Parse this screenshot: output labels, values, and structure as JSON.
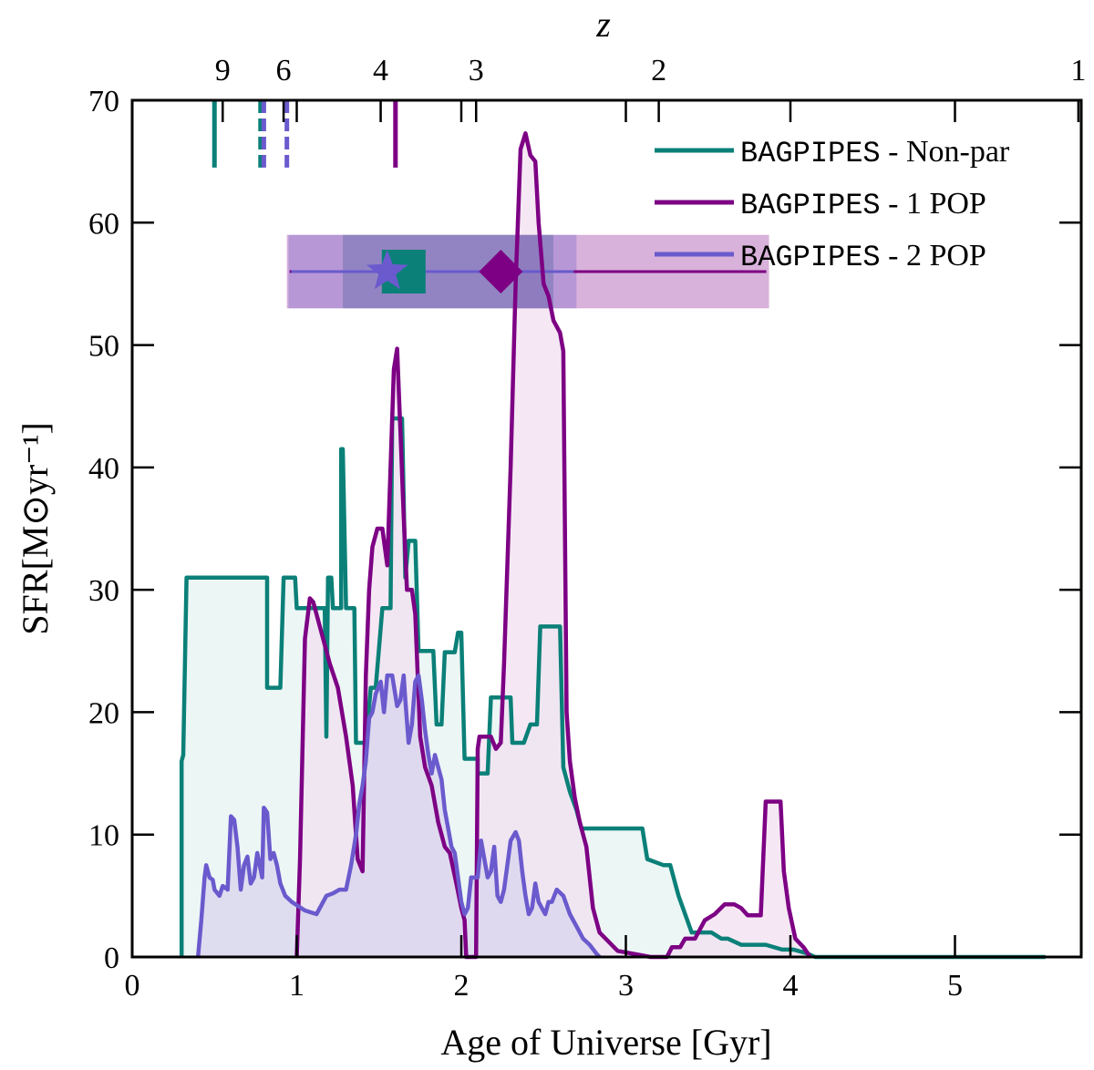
{
  "chart_data": {
    "type": "area",
    "xlabel": "Age of Universe [Gyr]",
    "ylabel": "SFR",
    "ylabel_unit": "[M⊙yr⁻¹]",
    "top_axis_label": "z",
    "xlim": [
      0,
      5.7
    ],
    "ylim": [
      0,
      70
    ],
    "x_ticks": [
      "0",
      "1",
      "2",
      "3",
      "4",
      "5"
    ],
    "y_ticks": [
      "0",
      "10",
      "20",
      "30",
      "40",
      "50",
      "60",
      "70"
    ],
    "top_ticks": [
      {
        "label": "9",
        "age": 0.55
      },
      {
        "label": "6",
        "age": 0.92
      },
      {
        "label": "4",
        "age": 1.51
      },
      {
        "label": "3",
        "age": 2.09
      },
      {
        "label": "2",
        "age": 3.2
      },
      {
        "label": "1",
        "age": 5.75
      }
    ],
    "series": [
      {
        "name": "BAGPIPES - Non-par",
        "legend_mono": "BAGPIPES",
        "legend_rest": " - Non-par",
        "color": "#0b8078",
        "fill": "#e6f3f2",
        "formation_marker": {
          "age": 1.65,
          "xerr": [
            1.28,
            2.56
          ],
          "y": 56,
          "shape": "square"
        },
        "formation_lines": [
          0.5,
          0.78
        ],
        "points": [
          [
            0.3,
            0
          ],
          [
            0.3,
            16
          ],
          [
            0.31,
            16.5
          ],
          [
            0.33,
            31
          ],
          [
            0.82,
            31
          ],
          [
            0.82,
            22
          ],
          [
            0.9,
            22
          ],
          [
            0.92,
            31
          ],
          [
            0.99,
            31
          ],
          [
            1,
            28.5
          ],
          [
            1.17,
            28.5
          ],
          [
            1.18,
            18
          ],
          [
            1.19,
            31
          ],
          [
            1.21,
            31
          ],
          [
            1.22,
            28.5
          ],
          [
            1.27,
            28.5
          ],
          [
            1.27,
            41.5
          ],
          [
            1.28,
            41.5
          ],
          [
            1.3,
            28.5
          ],
          [
            1.35,
            28.5
          ],
          [
            1.36,
            17.5
          ],
          [
            1.42,
            17.5
          ],
          [
            1.45,
            22
          ],
          [
            1.48,
            22
          ],
          [
            1.52,
            28.5
          ],
          [
            1.57,
            28.5
          ],
          [
            1.58,
            44
          ],
          [
            1.64,
            44
          ],
          [
            1.66,
            31
          ],
          [
            1.68,
            34
          ],
          [
            1.72,
            34
          ],
          [
            1.74,
            25
          ],
          [
            1.83,
            25
          ],
          [
            1.85,
            19
          ],
          [
            1.88,
            19
          ],
          [
            1.9,
            24.9
          ],
          [
            1.96,
            24.9
          ],
          [
            1.98,
            26.5
          ],
          [
            2,
            26.5
          ],
          [
            2.02,
            16.2
          ],
          [
            2.1,
            16.2
          ],
          [
            2.1,
            15
          ],
          [
            2.16,
            15
          ],
          [
            2.18,
            21.2
          ],
          [
            2.3,
            21.2
          ],
          [
            2.31,
            17.5
          ],
          [
            2.38,
            17.5
          ],
          [
            2.42,
            19
          ],
          [
            2.46,
            19
          ],
          [
            2.48,
            27
          ],
          [
            2.6,
            27
          ],
          [
            2.62,
            15.5
          ],
          [
            2.66,
            13.5
          ],
          [
            2.7,
            12
          ],
          [
            2.73,
            10.5
          ],
          [
            3.1,
            10.5
          ],
          [
            3.13,
            8
          ],
          [
            3.23,
            7.5
          ],
          [
            3.27,
            7.5
          ],
          [
            3.32,
            5
          ],
          [
            3.4,
            2
          ],
          [
            3.52,
            2
          ],
          [
            3.58,
            1.5
          ],
          [
            3.62,
            1.5
          ],
          [
            3.7,
            1
          ],
          [
            3.85,
            1
          ],
          [
            3.95,
            0.6
          ],
          [
            4.02,
            0.6
          ],
          [
            4.1,
            0.3
          ],
          [
            4.15,
            0
          ],
          [
            5.55,
            0
          ]
        ]
      },
      {
        "name": "BAGPIPES - 1 POP",
        "legend_mono": "BAGPIPES",
        "legend_rest": " - 1 POP",
        "color": "#7d0084",
        "fill": "#f2e0f0",
        "formation_marker": {
          "age": 2.24,
          "xerr": [
            0.94,
            3.87
          ],
          "y": 56,
          "shape": "diamond"
        },
        "formation_lines": [
          1.6
        ],
        "points": [
          [
            1,
            0
          ],
          [
            1.02,
            8
          ],
          [
            1.05,
            26
          ],
          [
            1.08,
            29.3
          ],
          [
            1.1,
            29
          ],
          [
            1.15,
            26.5
          ],
          [
            1.2,
            24
          ],
          [
            1.25,
            22
          ],
          [
            1.3,
            18
          ],
          [
            1.34,
            14
          ],
          [
            1.37,
            8
          ],
          [
            1.4,
            7
          ],
          [
            1.42,
            23
          ],
          [
            1.44,
            30
          ],
          [
            1.46,
            33.5
          ],
          [
            1.49,
            35
          ],
          [
            1.52,
            35
          ],
          [
            1.55,
            32
          ],
          [
            1.57,
            40
          ],
          [
            1.59,
            48
          ],
          [
            1.61,
            49.7
          ],
          [
            1.63,
            43
          ],
          [
            1.65,
            36
          ],
          [
            1.67,
            30
          ],
          [
            1.7,
            30
          ],
          [
            1.72,
            28
          ],
          [
            1.75,
            18
          ],
          [
            1.78,
            15.5
          ],
          [
            1.82,
            14
          ],
          [
            1.86,
            11
          ],
          [
            1.9,
            9
          ],
          [
            1.93,
            8.5
          ],
          [
            1.97,
            6
          ],
          [
            2,
            4
          ],
          [
            2.02,
            3
          ],
          [
            2.03,
            0
          ],
          [
            2.09,
            0
          ],
          [
            2.1,
            17
          ],
          [
            2.11,
            18
          ],
          [
            2.18,
            18
          ],
          [
            2.21,
            17
          ],
          [
            2.24,
            17.5
          ],
          [
            2.26,
            24
          ],
          [
            2.3,
            40
          ],
          [
            2.33,
            55
          ],
          [
            2.36,
            66
          ],
          [
            2.39,
            67.3
          ],
          [
            2.42,
            65.5
          ],
          [
            2.45,
            65
          ],
          [
            2.47,
            60
          ],
          [
            2.5,
            55
          ],
          [
            2.53,
            54
          ],
          [
            2.56,
            52
          ],
          [
            2.6,
            51
          ],
          [
            2.62,
            49.5
          ],
          [
            2.64,
            20
          ],
          [
            2.66,
            16
          ],
          [
            2.69,
            13
          ],
          [
            2.72,
            11
          ],
          [
            2.76,
            9
          ],
          [
            2.8,
            4
          ],
          [
            2.84,
            2
          ],
          [
            2.95,
            0.5
          ],
          [
            3.15,
            0
          ],
          [
            3.25,
            0
          ],
          [
            3.28,
            0.8
          ],
          [
            3.33,
            0.8
          ],
          [
            3.36,
            1.5
          ],
          [
            3.42,
            1.5
          ],
          [
            3.48,
            3
          ],
          [
            3.54,
            3.5
          ],
          [
            3.6,
            4.3
          ],
          [
            3.66,
            4.3
          ],
          [
            3.7,
            4
          ],
          [
            3.74,
            3.4
          ],
          [
            3.82,
            3.4
          ],
          [
            3.85,
            12.7
          ],
          [
            3.94,
            12.7
          ],
          [
            3.96,
            7
          ],
          [
            3.99,
            4
          ],
          [
            4.03,
            1.5
          ],
          [
            4.08,
            0.8
          ],
          [
            4.12,
            0
          ]
        ]
      },
      {
        "name": "BAGPIPES - 2 POP",
        "legend_mono": "BAGPIPES",
        "legend_rest": " - 2 POP",
        "color": "#6a5acd",
        "fill": "#d9d4ee",
        "formation_marker": {
          "age": 1.55,
          "xerr": [
            0.95,
            2.7
          ],
          "y": 56,
          "shape": "star"
        },
        "formation_lines": [
          0.8,
          0.94
        ],
        "points": [
          [
            0.4,
            0
          ],
          [
            0.42,
            3
          ],
          [
            0.44,
            6.5
          ],
          [
            0.45,
            7.5
          ],
          [
            0.47,
            6.5
          ],
          [
            0.49,
            6.3
          ],
          [
            0.5,
            5.5
          ],
          [
            0.53,
            5
          ],
          [
            0.55,
            5.8
          ],
          [
            0.58,
            5.5
          ],
          [
            0.6,
            11.5
          ],
          [
            0.62,
            11.2
          ],
          [
            0.64,
            9
          ],
          [
            0.66,
            5.5
          ],
          [
            0.68,
            7.5
          ],
          [
            0.7,
            8.2
          ],
          [
            0.72,
            6
          ],
          [
            0.74,
            6.5
          ],
          [
            0.76,
            8.5
          ],
          [
            0.79,
            6.5
          ],
          [
            0.8,
            12.2
          ],
          [
            0.82,
            11.8
          ],
          [
            0.84,
            8
          ],
          [
            0.86,
            8.5
          ],
          [
            0.88,
            7.5
          ],
          [
            0.9,
            6
          ],
          [
            0.93,
            5
          ],
          [
            0.97,
            4.5
          ],
          [
            1.05,
            3.8
          ],
          [
            1.12,
            3.5
          ],
          [
            1.18,
            5
          ],
          [
            1.22,
            5.2
          ],
          [
            1.26,
            5.5
          ],
          [
            1.3,
            5.5
          ],
          [
            1.33,
            7.5
          ],
          [
            1.36,
            10
          ],
          [
            1.38,
            12.5
          ],
          [
            1.4,
            14
          ],
          [
            1.42,
            16
          ],
          [
            1.44,
            19.5
          ],
          [
            1.46,
            20
          ],
          [
            1.48,
            21.5
          ],
          [
            1.51,
            22.5
          ],
          [
            1.53,
            20
          ],
          [
            1.55,
            23
          ],
          [
            1.58,
            23
          ],
          [
            1.61,
            20.5
          ],
          [
            1.63,
            21
          ],
          [
            1.65,
            23
          ],
          [
            1.66,
            21
          ],
          [
            1.68,
            17.5
          ],
          [
            1.7,
            19
          ],
          [
            1.72,
            22.5
          ],
          [
            1.74,
            23
          ],
          [
            1.76,
            21
          ],
          [
            1.78,
            18.5
          ],
          [
            1.8,
            16.5
          ],
          [
            1.82,
            15
          ],
          [
            1.84,
            16.5
          ],
          [
            1.86,
            15.5
          ],
          [
            1.88,
            14.5
          ],
          [
            1.9,
            12
          ],
          [
            1.92,
            10.5
          ],
          [
            1.94,
            9
          ],
          [
            1.96,
            8.5
          ],
          [
            1.98,
            6.5
          ],
          [
            2,
            4.5
          ],
          [
            2.02,
            3.5
          ],
          [
            2.04,
            4
          ],
          [
            2.06,
            6.5
          ],
          [
            2.1,
            6.5
          ],
          [
            2.12,
            9.5
          ],
          [
            2.14,
            8
          ],
          [
            2.16,
            6.5
          ],
          [
            2.18,
            7
          ],
          [
            2.2,
            9
          ],
          [
            2.22,
            5
          ],
          [
            2.24,
            4.5
          ],
          [
            2.26,
            5.5
          ],
          [
            2.3,
            9.5
          ],
          [
            2.33,
            10.2
          ],
          [
            2.35,
            9.5
          ],
          [
            2.37,
            7
          ],
          [
            2.39,
            5
          ],
          [
            2.41,
            3.5
          ],
          [
            2.43,
            4
          ],
          [
            2.45,
            6
          ],
          [
            2.47,
            4.5
          ],
          [
            2.49,
            4
          ],
          [
            2.51,
            3.5
          ],
          [
            2.53,
            4.5
          ],
          [
            2.55,
            4.5
          ],
          [
            2.58,
            5.5
          ],
          [
            2.62,
            5
          ],
          [
            2.66,
            3.5
          ],
          [
            2.7,
            2.5
          ],
          [
            2.74,
            1.5
          ],
          [
            2.78,
            1
          ],
          [
            2.82,
            0.3
          ],
          [
            2.84,
            0
          ]
        ]
      }
    ]
  }
}
